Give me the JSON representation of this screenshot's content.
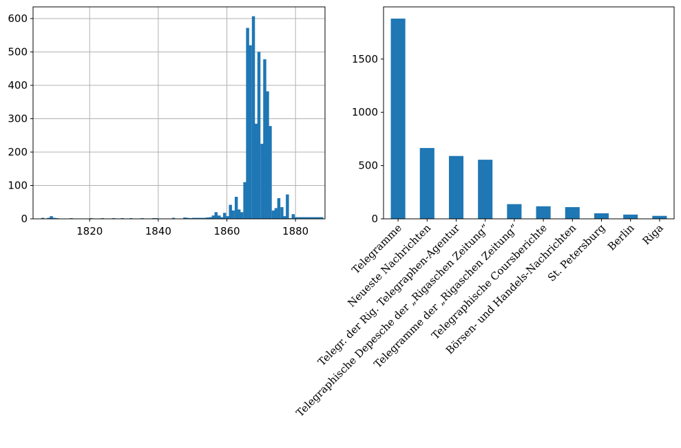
{
  "colors": {
    "bar": "#1f77b4",
    "grid": "#b0b0b0",
    "axis": "#000000"
  },
  "chart_data": [
    {
      "type": "bar",
      "subtype": "histogram",
      "title": "",
      "xlabel": "",
      "ylabel": "",
      "grid": true,
      "xlim": [
        1803.5,
        1888.6
      ],
      "ylim": [
        0,
        635
      ],
      "xticks": [
        1820,
        1840,
        1860,
        1880
      ],
      "yticks": [
        0,
        100,
        200,
        300,
        400,
        500,
        600
      ],
      "bin_width": 0.83,
      "x": [
        1806.3,
        1808.0,
        1808.8,
        1809.6,
        1810.5,
        1811.3,
        1814.6,
        1817.9,
        1820.4,
        1823.7,
        1827.0,
        1829.5,
        1832.0,
        1835.3,
        1838.6,
        1839.4,
        1844.4,
        1847.7,
        1848.5,
        1849.3,
        1850.2,
        1851.0,
        1851.8,
        1852.7,
        1853.5,
        1854.3,
        1855.2,
        1856.0,
        1856.8,
        1857.7,
        1858.5,
        1859.3,
        1860.2,
        1861.0,
        1861.8,
        1862.7,
        1863.5,
        1864.3,
        1865.2,
        1866.0,
        1866.8,
        1867.7,
        1868.5,
        1869.3,
        1870.2,
        1871.0,
        1871.8,
        1872.6,
        1873.5,
        1874.3,
        1875.1,
        1876.0,
        1876.8,
        1877.6,
        1878.5,
        1879.3,
        1880.1,
        1881.0,
        1881.8,
        1882.6,
        1883.5,
        1884.3,
        1885.1,
        1886.0,
        1886.8,
        1887.6
      ],
      "values": [
        3,
        3,
        8,
        3,
        2,
        1,
        2,
        1,
        2,
        2,
        2,
        2,
        2,
        2,
        2,
        2,
        3,
        4,
        3,
        2,
        3,
        3,
        3,
        3,
        3,
        4,
        5,
        10,
        20,
        10,
        5,
        18,
        8,
        42,
        25,
        66,
        28,
        20,
        110,
        572,
        520,
        607,
        285,
        500,
        225,
        478,
        382,
        278,
        25,
        32,
        62,
        35,
        8,
        73,
        2,
        14,
        5,
        5,
        5,
        5,
        5,
        5,
        5,
        5,
        5,
        5
      ]
    },
    {
      "type": "bar",
      "title": "",
      "xlabel": "",
      "ylabel": "",
      "grid": false,
      "ylim": [
        0,
        1990
      ],
      "yticks": [
        0,
        500,
        1000,
        1500
      ],
      "categories": [
        "Telegramme",
        "Neueste Nachrichten",
        "Telegr. der Rig. Telegraphen-Agentur",
        "Telegraphische Depesche der „Rigaschen Zeitung“",
        "Telegramme der „Rigaschen Zeitung“",
        "Telegraphische Coursberichte",
        "Börsen- und Handels-Nachrichten",
        "St. Petersburg",
        "Berlin",
        "Riga"
      ],
      "values": [
        1880,
        665,
        590,
        555,
        138,
        118,
        110,
        52,
        40,
        28
      ]
    }
  ]
}
